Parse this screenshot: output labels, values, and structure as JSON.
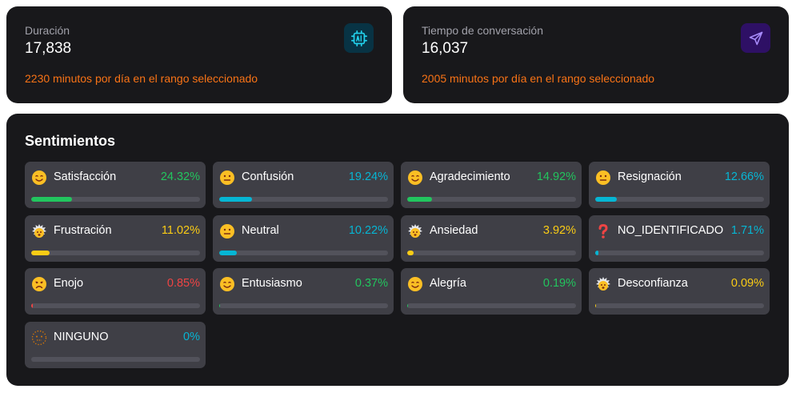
{
  "metrics": [
    {
      "label": "Duración",
      "value": "17,838",
      "note": "2230 minutos por día en el rango seleccionado",
      "icon": "ai-chip-icon",
      "accent": "#22d3ee"
    },
    {
      "label": "Tiempo de conversación",
      "value": "16,037",
      "note": "2005 minutos por día en el rango seleccionado",
      "icon": "send-icon",
      "accent": "#a78bfa"
    }
  ],
  "sentiments": {
    "title": "Sentimientos",
    "items": [
      {
        "name": "Satisfacción",
        "pct": "24.32%",
        "value": 24.32,
        "color": "#22c55e",
        "emoji": "smile"
      },
      {
        "name": "Confusión",
        "pct": "19.24%",
        "value": 19.24,
        "color": "#06b6d4",
        "emoji": "neutral"
      },
      {
        "name": "Agradecimiento",
        "pct": "14.92%",
        "value": 14.92,
        "color": "#22c55e",
        "emoji": "smile"
      },
      {
        "name": "Resignación",
        "pct": "12.66%",
        "value": 12.66,
        "color": "#06b6d4",
        "emoji": "neutral"
      },
      {
        "name": "Frustración",
        "pct": "11.02%",
        "value": 11.02,
        "color": "#facc15",
        "emoji": "exploding"
      },
      {
        "name": "Neutral",
        "pct": "10.22%",
        "value": 10.22,
        "color": "#06b6d4",
        "emoji": "neutral"
      },
      {
        "name": "Ansiedad",
        "pct": "3.92%",
        "value": 3.92,
        "color": "#facc15",
        "emoji": "exploding"
      },
      {
        "name": "NO_IDENTIFICADO",
        "pct": "1.71%",
        "value": 1.71,
        "color": "#06b6d4",
        "emoji": "question"
      },
      {
        "name": "Enojo",
        "pct": "0.85%",
        "value": 0.85,
        "color": "#ef4444",
        "emoji": "sad"
      },
      {
        "name": "Entusiasmo",
        "pct": "0.37%",
        "value": 0.37,
        "color": "#22c55e",
        "emoji": "smile"
      },
      {
        "name": "Alegría",
        "pct": "0.19%",
        "value": 0.19,
        "color": "#22c55e",
        "emoji": "smile"
      },
      {
        "name": "Desconfianza",
        "pct": "0.09%",
        "value": 0.09,
        "color": "#facc15",
        "emoji": "exploding"
      },
      {
        "name": "NINGUNO",
        "pct": "0%",
        "value": 0,
        "color": "#06b6d4",
        "emoji": "dotted"
      }
    ]
  }
}
